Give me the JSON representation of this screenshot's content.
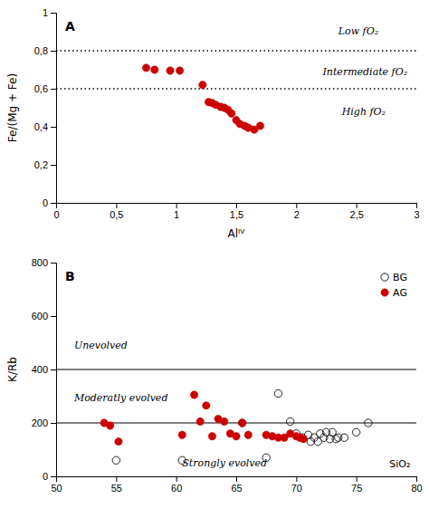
{
  "chart_data": [
    {
      "type": "scatter",
      "title": "A",
      "x_label": "Alᴵⱽ",
      "y_label": "Fe/(Mg + Fe)",
      "xlim": [
        0,
        3
      ],
      "ylim": [
        0,
        1
      ],
      "xticks": [
        0,
        {
          "value": 0.5,
          "label": "0,5"
        },
        1,
        {
          "value": 1.5,
          "label": "1,5"
        },
        2,
        {
          "value": 2.5,
          "label": "2,5"
        },
        3
      ],
      "yticks": [
        0,
        {
          "value": 0.2,
          "label": "0,2"
        },
        {
          "value": 0.4,
          "label": "0,4"
        },
        {
          "value": 0.6,
          "label": "0,6"
        },
        {
          "value": 0.8,
          "label": "0,8"
        },
        1
      ],
      "grid": false,
      "reference_lines": {
        "values": [
          0.8,
          0.6
        ],
        "line_style": "dotted"
      },
      "annotations": [
        {
          "text": "Low fO₂",
          "x": 2.35,
          "y": 0.905
        },
        {
          "text": "Intermediate fO₂",
          "x": 2.22,
          "y": 0.69
        },
        {
          "text": "High fO₂",
          "x": 2.38,
          "y": 0.48
        }
      ],
      "series": [
        {
          "color": "#cc0000",
          "marker": "circle",
          "x": [
            0.75,
            0.82,
            0.95,
            1.03,
            1.22,
            1.27,
            1.3,
            1.33,
            1.37,
            1.4,
            1.43,
            1.46,
            1.5,
            1.53,
            1.57,
            1.6,
            1.65,
            1.7
          ],
          "values": [
            0.71,
            0.7,
            0.695,
            0.695,
            0.62,
            0.53,
            0.525,
            0.515,
            0.505,
            0.5,
            0.49,
            0.47,
            0.435,
            0.415,
            0.405,
            0.395,
            0.385,
            0.405
          ]
        }
      ]
    },
    {
      "type": "scatter",
      "title": "B",
      "y_label": "K/Rb",
      "xlim": [
        50,
        80
      ],
      "ylim": [
        0,
        800
      ],
      "xticks": [
        50,
        55,
        60,
        65,
        70,
        75,
        80
      ],
      "yticks": [
        0,
        200,
        400,
        600,
        800
      ],
      "grid": false,
      "legend": "top-right",
      "reference_lines": {
        "values": [
          400,
          200
        ],
        "line_style": "solid"
      },
      "annotations": [
        {
          "text": "Unevolved",
          "x": 51.5,
          "y": 490
        },
        {
          "text": "Moderatly evolved",
          "x": 51.5,
          "y": 295
        },
        {
          "text": "Strongly evolved",
          "x": 60.5,
          "y": 52
        },
        {
          "text": "SiO₂",
          "x": 79.5,
          "y": 28
        }
      ],
      "series": [
        {
          "name": "BG",
          "color": "#222222",
          "marker": "open-circle",
          "x": [
            55.0,
            60.5,
            65.5,
            68.5,
            69.5,
            70.0,
            70.5,
            71.0,
            71.2,
            71.5,
            71.8,
            72.0,
            72.3,
            72.5,
            72.8,
            73.0,
            73.3,
            73.5,
            74.0,
            75.0,
            76.0,
            67.5
          ],
          "values": [
            60,
            60,
            200,
            310,
            205,
            160,
            145,
            155,
            130,
            145,
            130,
            160,
            145,
            165,
            140,
            165,
            140,
            145,
            145,
            165,
            200,
            70
          ]
        },
        {
          "name": "AG",
          "color": "#cc0000",
          "marker": "circle",
          "x": [
            54.0,
            54.5,
            55.2,
            60.5,
            61.5,
            62.0,
            62.5,
            63.0,
            63.5,
            64.0,
            64.5,
            65.0,
            65.5,
            66.0,
            67.5,
            68.0,
            68.5,
            69.0,
            69.5,
            70.0,
            70.3,
            70.6
          ],
          "values": [
            200,
            190,
            130,
            155,
            305,
            205,
            265,
            150,
            215,
            205,
            160,
            150,
            200,
            155,
            155,
            150,
            145,
            145,
            160,
            150,
            145,
            140
          ]
        }
      ]
    }
  ]
}
